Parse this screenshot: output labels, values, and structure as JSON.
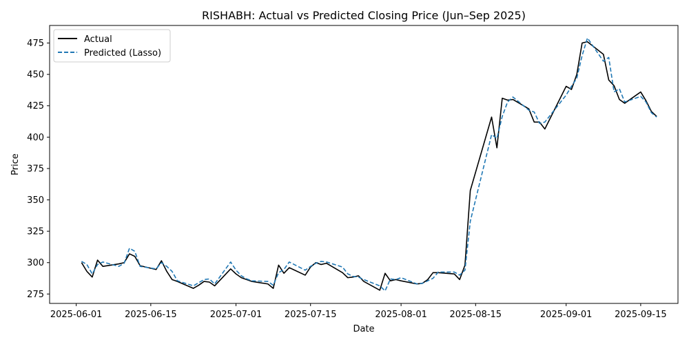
{
  "chart_data": {
    "type": "line",
    "title": "RISHABH: Actual vs Predicted Closing Price (Jun–Sep 2025)",
    "xlabel": "Date",
    "ylabel": "Price",
    "x_range": [
      "2025-05-27",
      "2025-09-22"
    ],
    "ylim": [
      267.5,
      489
    ],
    "x_ticks": [
      "2025-06-01",
      "2025-06-15",
      "2025-07-01",
      "2025-07-15",
      "2025-08-01",
      "2025-08-15",
      "2025-09-01",
      "2025-09-15"
    ],
    "y_ticks": [
      275,
      300,
      325,
      350,
      375,
      400,
      425,
      450,
      475
    ],
    "grid": false,
    "legend_position": "upper left",
    "series": [
      {
        "name": "Actual",
        "color": "#000000",
        "style": "solid",
        "points": [
          [
            "2025-06-02",
            300
          ],
          [
            "2025-06-03",
            293
          ],
          [
            "2025-06-04",
            288.5
          ],
          [
            "2025-06-05",
            302
          ],
          [
            "2025-06-06",
            297
          ],
          [
            "2025-06-09",
            299
          ],
          [
            "2025-06-10",
            300
          ],
          [
            "2025-06-11",
            307
          ],
          [
            "2025-06-12",
            305
          ],
          [
            "2025-06-13",
            297.5
          ],
          [
            "2025-06-16",
            294.5
          ],
          [
            "2025-06-17",
            301.5
          ],
          [
            "2025-06-18",
            293
          ],
          [
            "2025-06-19",
            286.5
          ],
          [
            "2025-06-20",
            285
          ],
          [
            "2025-06-23",
            279.5
          ],
          [
            "2025-06-24",
            282
          ],
          [
            "2025-06-25",
            285
          ],
          [
            "2025-06-26",
            284.5
          ],
          [
            "2025-06-27",
            281.5
          ],
          [
            "2025-06-30",
            295
          ],
          [
            "2025-07-01",
            291
          ],
          [
            "2025-07-02",
            288
          ],
          [
            "2025-07-03",
            286.5
          ],
          [
            "2025-07-04",
            285
          ],
          [
            "2025-07-07",
            283
          ],
          [
            "2025-07-08",
            279.5
          ],
          [
            "2025-07-09",
            298
          ],
          [
            "2025-07-10",
            291.5
          ],
          [
            "2025-07-11",
            296
          ],
          [
            "2025-07-14",
            290
          ],
          [
            "2025-07-15",
            296.5
          ],
          [
            "2025-07-16",
            300
          ],
          [
            "2025-07-17",
            298.5
          ],
          [
            "2025-07-18",
            299.5
          ],
          [
            "2025-07-21",
            292
          ],
          [
            "2025-07-22",
            288
          ],
          [
            "2025-07-23",
            288.5
          ],
          [
            "2025-07-24",
            289.5
          ],
          [
            "2025-07-25",
            285
          ],
          [
            "2025-07-28",
            278
          ],
          [
            "2025-07-29",
            291.5
          ],
          [
            "2025-07-30",
            285.5
          ],
          [
            "2025-07-31",
            286.5
          ],
          [
            "2025-08-01",
            285.5
          ],
          [
            "2025-08-04",
            283
          ],
          [
            "2025-08-05",
            283.5
          ],
          [
            "2025-08-06",
            286.5
          ],
          [
            "2025-08-07",
            292
          ],
          [
            "2025-08-08",
            292
          ],
          [
            "2025-08-11",
            291
          ],
          [
            "2025-08-12",
            286.5
          ],
          [
            "2025-08-13",
            298
          ],
          [
            "2025-08-14",
            357.5
          ],
          [
            "2025-08-18",
            416
          ],
          [
            "2025-08-19",
            391.5
          ],
          [
            "2025-08-20",
            431
          ],
          [
            "2025-08-21",
            429.5
          ],
          [
            "2025-08-22",
            430
          ],
          [
            "2025-08-25",
            422.5
          ],
          [
            "2025-08-26",
            412
          ],
          [
            "2025-08-27",
            412
          ],
          [
            "2025-08-28",
            406.5
          ],
          [
            "2025-09-01",
            440.5
          ],
          [
            "2025-09-02",
            438
          ],
          [
            "2025-09-03",
            450
          ],
          [
            "2025-09-04",
            475
          ],
          [
            "2025-09-05",
            476
          ],
          [
            "2025-09-08",
            466
          ],
          [
            "2025-09-09",
            445.5
          ],
          [
            "2025-09-10",
            441
          ],
          [
            "2025-09-11",
            430
          ],
          [
            "2025-09-12",
            427
          ],
          [
            "2025-09-15",
            436
          ],
          [
            "2025-09-16",
            429
          ],
          [
            "2025-09-17",
            420.5
          ],
          [
            "2025-09-18",
            416.5
          ]
        ]
      },
      {
        "name": "Predicted (Lasso)",
        "color": "#1f77b4",
        "style": "dashed",
        "points": [
          [
            "2025-06-02",
            301
          ],
          [
            "2025-06-03",
            298.5
          ],
          [
            "2025-06-04",
            291
          ],
          [
            "2025-06-05",
            298.5
          ],
          [
            "2025-06-06",
            300.5
          ],
          [
            "2025-06-09",
            297
          ],
          [
            "2025-06-10",
            299.5
          ],
          [
            "2025-06-11",
            311.5
          ],
          [
            "2025-06-12",
            309
          ],
          [
            "2025-06-13",
            297
          ],
          [
            "2025-06-16",
            295
          ],
          [
            "2025-06-17",
            300
          ],
          [
            "2025-06-18",
            297
          ],
          [
            "2025-06-19",
            293
          ],
          [
            "2025-06-20",
            285.5
          ],
          [
            "2025-06-23",
            281.5
          ],
          [
            "2025-06-24",
            284
          ],
          [
            "2025-06-25",
            286.5
          ],
          [
            "2025-06-26",
            287
          ],
          [
            "2025-06-27",
            283
          ],
          [
            "2025-06-30",
            300.5
          ],
          [
            "2025-07-01",
            294
          ],
          [
            "2025-07-02",
            289.5
          ],
          [
            "2025-07-03",
            287
          ],
          [
            "2025-07-04",
            285.5
          ],
          [
            "2025-07-07",
            285
          ],
          [
            "2025-07-08",
            282
          ],
          [
            "2025-07-09",
            292
          ],
          [
            "2025-07-10",
            294.5
          ],
          [
            "2025-07-11",
            300.5
          ],
          [
            "2025-07-14",
            294
          ],
          [
            "2025-07-15",
            297
          ],
          [
            "2025-07-16",
            299.5
          ],
          [
            "2025-07-17",
            301
          ],
          [
            "2025-07-18",
            300.5
          ],
          [
            "2025-07-21",
            296.5
          ],
          [
            "2025-07-22",
            291
          ],
          [
            "2025-07-23",
            289
          ],
          [
            "2025-07-24",
            288.5
          ],
          [
            "2025-07-25",
            286.5
          ],
          [
            "2025-07-28",
            281.5
          ],
          [
            "2025-07-29",
            277.5
          ],
          [
            "2025-07-30",
            287
          ],
          [
            "2025-07-31",
            286.5
          ],
          [
            "2025-08-01",
            288
          ],
          [
            "2025-08-04",
            283
          ],
          [
            "2025-08-05",
            283.5
          ],
          [
            "2025-08-06",
            285.5
          ],
          [
            "2025-08-07",
            287.5
          ],
          [
            "2025-08-08",
            292.5
          ],
          [
            "2025-08-11",
            292.5
          ],
          [
            "2025-08-12",
            290
          ],
          [
            "2025-08-13",
            294
          ],
          [
            "2025-08-14",
            333
          ],
          [
            "2025-08-18",
            402
          ],
          [
            "2025-08-19",
            399
          ],
          [
            "2025-08-20",
            416.5
          ],
          [
            "2025-08-21",
            428
          ],
          [
            "2025-08-22",
            432
          ],
          [
            "2025-08-25",
            421.5
          ],
          [
            "2025-08-26",
            420
          ],
          [
            "2025-08-27",
            411
          ],
          [
            "2025-08-28",
            412
          ],
          [
            "2025-09-01",
            433.5
          ],
          [
            "2025-09-02",
            440.5
          ],
          [
            "2025-09-03",
            447
          ],
          [
            "2025-09-04",
            465
          ],
          [
            "2025-09-05",
            479
          ],
          [
            "2025-09-08",
            460.5
          ],
          [
            "2025-09-09",
            463.5
          ],
          [
            "2025-09-10",
            436
          ],
          [
            "2025-09-11",
            438.5
          ],
          [
            "2025-09-12",
            428
          ],
          [
            "2025-09-15",
            432.5
          ],
          [
            "2025-09-16",
            428
          ],
          [
            "2025-09-17",
            419.5
          ],
          [
            "2025-09-18",
            416
          ]
        ]
      }
    ]
  }
}
